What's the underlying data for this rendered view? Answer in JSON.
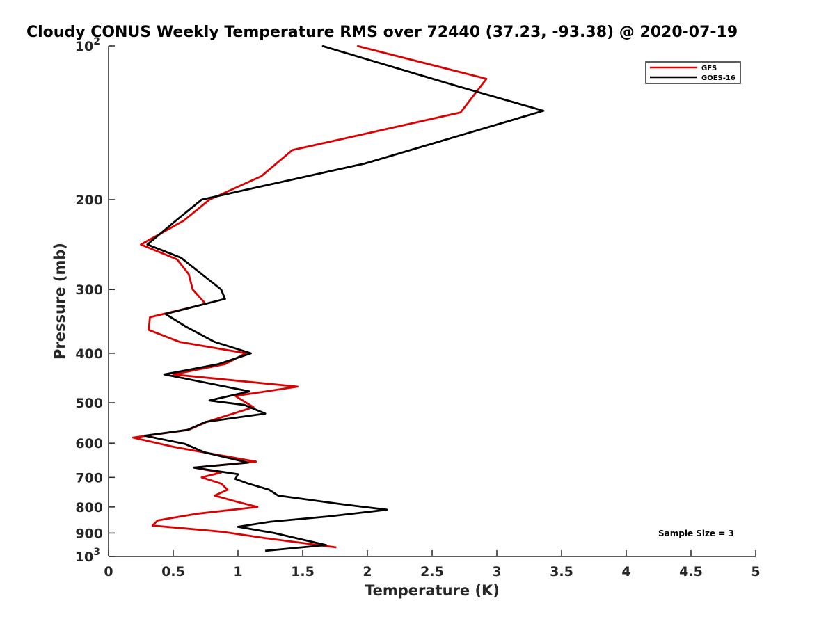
{
  "chart_data": {
    "type": "line",
    "title": "Cloudy CONUS Weekly Temperature RMS over 72440 (37.23, -93.38) @ 2020-07-19",
    "xlabel": "Temperature (K)",
    "ylabel": "Pressure (mb)",
    "xlim": [
      0,
      5
    ],
    "ylim": [
      100,
      1000
    ],
    "y_scale": "log",
    "y_reversed": true,
    "x_ticks": [
      0,
      0.5,
      1,
      1.5,
      2,
      2.5,
      3,
      3.5,
      4,
      4.5,
      5
    ],
    "x_tick_labels": [
      "0",
      "0.5",
      "1",
      "1.5",
      "2",
      "2.5",
      "3",
      "3.5",
      "4",
      "4.5",
      "5"
    ],
    "y_ticks": [
      100,
      200,
      300,
      400,
      500,
      600,
      700,
      800,
      900,
      1000
    ],
    "y_tick_labels": [
      {
        "base": "10",
        "exp": "2"
      },
      {
        "base": "200",
        "exp": ""
      },
      {
        "base": "300",
        "exp": ""
      },
      {
        "base": "400",
        "exp": ""
      },
      {
        "base": "500",
        "exp": ""
      },
      {
        "base": "600",
        "exp": ""
      },
      {
        "base": "700",
        "exp": ""
      },
      {
        "base": "800",
        "exp": ""
      },
      {
        "base": "900",
        "exp": ""
      },
      {
        "base": "10",
        "exp": "3"
      }
    ],
    "legend_position": "top-right",
    "grid": false,
    "annotation": "Sample Size = 3",
    "series": [
      {
        "name": "GFS",
        "color": "#dd0000",
        "points": [
          [
            1.92,
            100
          ],
          [
            2.92,
            116
          ],
          [
            2.72,
            135
          ],
          [
            1.42,
            160
          ],
          [
            1.18,
            180
          ],
          [
            0.78,
            200
          ],
          [
            0.58,
            220
          ],
          [
            0.25,
            245
          ],
          [
            0.53,
            262
          ],
          [
            0.62,
            280
          ],
          [
            0.65,
            300
          ],
          [
            0.75,
            320
          ],
          [
            0.32,
            340
          ],
          [
            0.31,
            360
          ],
          [
            0.55,
            380
          ],
          [
            1.06,
            400
          ],
          [
            0.9,
            420
          ],
          [
            0.5,
            440
          ],
          [
            1.46,
            465
          ],
          [
            0.98,
            485
          ],
          [
            1.12,
            510
          ],
          [
            0.76,
            545
          ],
          [
            0.62,
            565
          ],
          [
            0.19,
            585
          ],
          [
            0.5,
            610
          ],
          [
            1.14,
            652
          ],
          [
            0.66,
            670
          ],
          [
            0.87,
            685
          ],
          [
            0.72,
            700
          ],
          [
            0.87,
            720
          ],
          [
            0.92,
            740
          ],
          [
            0.82,
            760
          ],
          [
            0.98,
            780
          ],
          [
            1.15,
            800
          ],
          [
            0.68,
            825
          ],
          [
            0.38,
            850
          ],
          [
            0.34,
            870
          ],
          [
            0.88,
            895
          ],
          [
            1.2,
            920
          ],
          [
            1.76,
            960
          ]
        ]
      },
      {
        "name": "GOES-16",
        "color": "#000000",
        "points": [
          [
            1.65,
            100
          ],
          [
            2.7,
            120
          ],
          [
            3.36,
            134
          ],
          [
            1.98,
            170
          ],
          [
            0.72,
            200
          ],
          [
            0.52,
            220
          ],
          [
            0.3,
            245
          ],
          [
            0.56,
            260
          ],
          [
            0.87,
            300
          ],
          [
            0.9,
            313
          ],
          [
            0.44,
            335
          ],
          [
            0.6,
            355
          ],
          [
            0.82,
            380
          ],
          [
            1.1,
            400
          ],
          [
            0.85,
            420
          ],
          [
            0.43,
            440
          ],
          [
            1.09,
            475
          ],
          [
            0.78,
            495
          ],
          [
            1.05,
            505
          ],
          [
            1.21,
            525
          ],
          [
            0.75,
            545
          ],
          [
            0.61,
            565
          ],
          [
            0.28,
            580
          ],
          [
            0.59,
            602
          ],
          [
            0.74,
            625
          ],
          [
            1.08,
            655
          ],
          [
            0.66,
            670
          ],
          [
            1.0,
            690
          ],
          [
            0.98,
            705
          ],
          [
            1.08,
            720
          ],
          [
            1.24,
            740
          ],
          [
            1.31,
            760
          ],
          [
            1.8,
            790
          ],
          [
            2.15,
            810
          ],
          [
            1.7,
            835
          ],
          [
            1.25,
            855
          ],
          [
            1.0,
            875
          ],
          [
            1.28,
            900
          ],
          [
            1.68,
            950
          ],
          [
            1.21,
            975
          ]
        ]
      }
    ]
  }
}
